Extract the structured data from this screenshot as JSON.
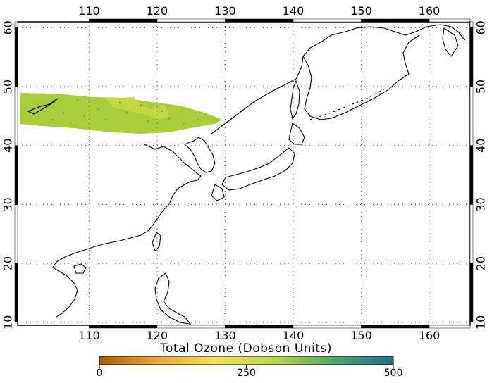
{
  "map": {
    "lon_ticks": [
      110,
      120,
      130,
      140,
      150,
      160
    ],
    "lat_ticks": [
      10,
      20,
      30,
      40,
      50,
      60
    ],
    "lon_range": [
      99.5,
      166
    ],
    "lat_range": [
      9.5,
      61
    ],
    "grid": "dotted"
  },
  "colorbar": {
    "title": "Total Ozone (Dobson Units)",
    "min_label": "0",
    "mid_label": "250",
    "max_label": "500",
    "colors": [
      "#b35a00",
      "#e8a93a",
      "#f3e35a",
      "#b7d44a",
      "#4fa56a",
      "#1f6f8b"
    ]
  },
  "data_swath": {
    "fill_color": "#a8cc3a",
    "speck_color": "#5aa84a"
  }
}
